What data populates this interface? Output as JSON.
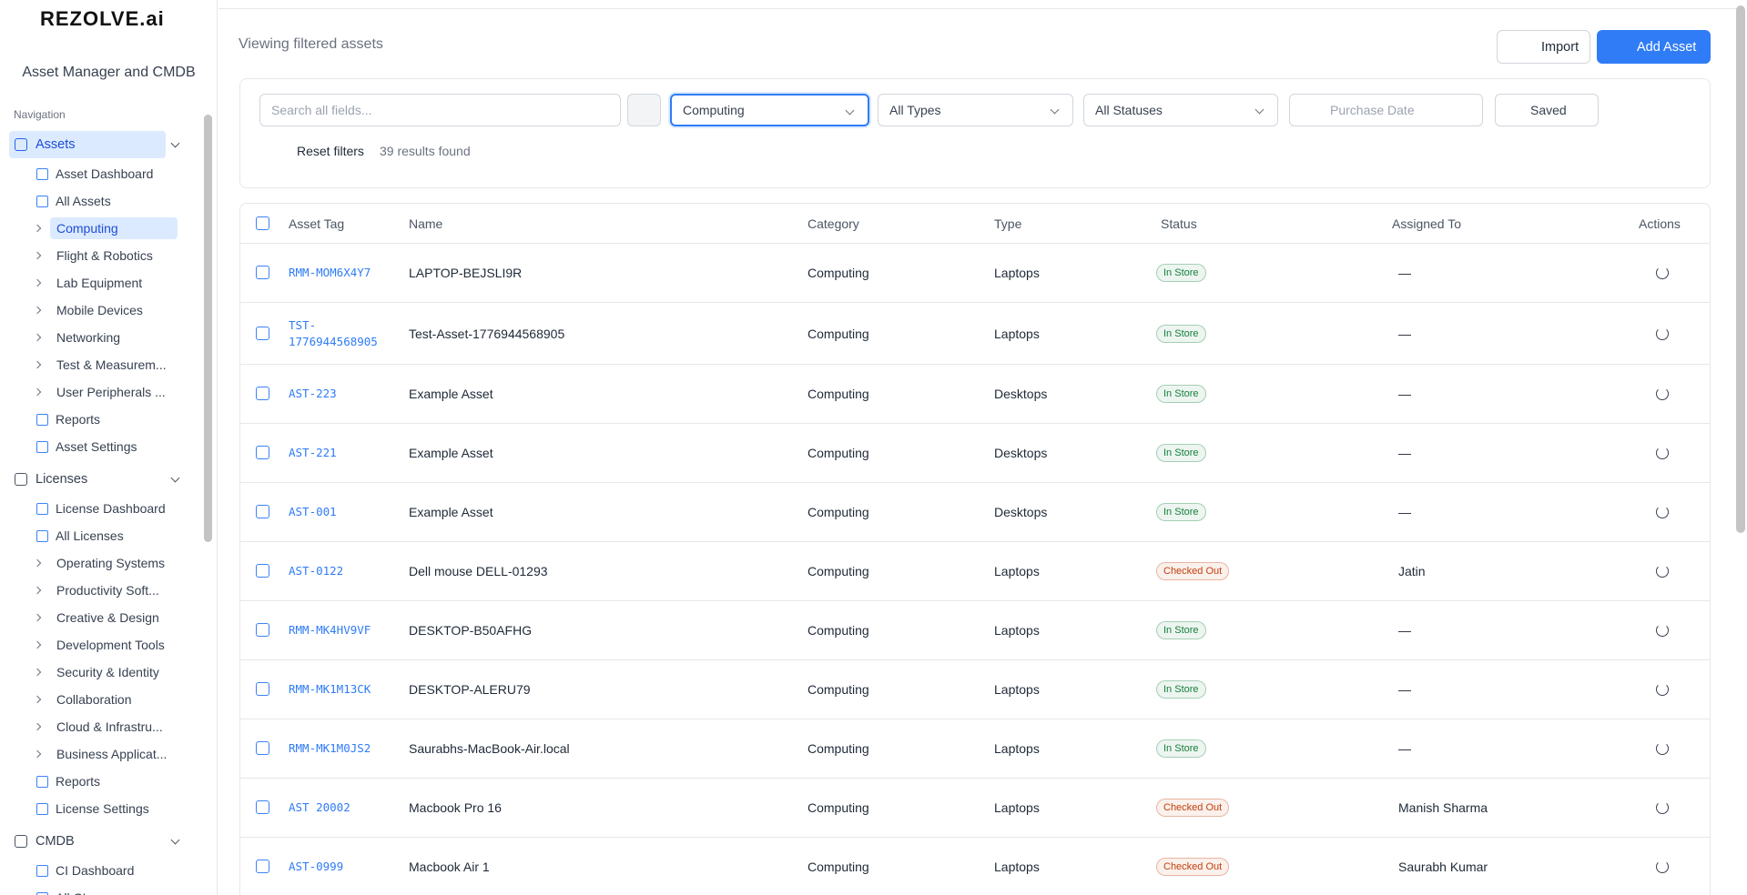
{
  "sidebar": {
    "logo": "REZOLVE.ai",
    "app_title": "Asset Manager and CMDB",
    "nav_label": "Navigation",
    "groups": [
      {
        "label": "Assets",
        "pages": [
          "Asset Dashboard",
          "All Assets"
        ],
        "categories": [
          "Computing",
          "Flight & Robotics",
          "Lab Equipment",
          "Mobile Devices",
          "Networking",
          "Test & Measurem...",
          "User Peripherals ..."
        ],
        "footer_pages": [
          "Reports",
          "Asset Settings"
        ]
      },
      {
        "label": "Licenses",
        "pages": [
          "License Dashboard",
          "All Licenses"
        ],
        "categories": [
          "Operating Systems",
          "Productivity Soft...",
          "Creative & Design",
          "Development Tools",
          "Security & Identity",
          "Collaboration",
          "Cloud & Infrastru...",
          "Business Applicat..."
        ],
        "footer_pages": [
          "Reports",
          "License Settings"
        ]
      },
      {
        "label": "CMDB",
        "pages": [
          "CI Dashboard",
          "All CIs"
        ],
        "categories": [],
        "footer_pages": []
      }
    ]
  },
  "header": {
    "title": "Viewing filtered assets",
    "import": "Import",
    "add": "Add Asset"
  },
  "filters": {
    "search": "Search all fields...",
    "category": "Computing",
    "type": "All Types",
    "status": "All Statuses",
    "date": "Purchase Date",
    "saved": "Saved",
    "reset": "Reset filters",
    "results": "39 results found"
  },
  "table": {
    "columns": [
      "Asset Tag",
      "Name",
      "Category",
      "Type",
      "Status",
      "Assigned To",
      "Actions"
    ],
    "status_colors": {
      "In Store": "#15803d",
      "Checked Out": "#c2410c"
    },
    "rows": [
      [
        "RMM-MOM6X4Y7",
        "LAPTOP-BEJSLI9R",
        "Computing",
        "Laptops",
        "In Store",
        "—"
      ],
      [
        "TST-1776944568905",
        "Test-Asset-1776944568905",
        "Computing",
        "Laptops",
        "In Store",
        "—"
      ],
      [
        "AST-223",
        "Example Asset",
        "Computing",
        "Desktops",
        "In Store",
        "—"
      ],
      [
        "AST-221",
        "Example Asset",
        "Computing",
        "Desktops",
        "In Store",
        "—"
      ],
      [
        "AST-001",
        "Example Asset",
        "Computing",
        "Desktops",
        "In Store",
        "—"
      ],
      [
        "AST-0122",
        "Dell mouse DELL-01293",
        "Computing",
        "Laptops",
        "Checked Out",
        "Jatin"
      ],
      [
        "RMM-MK4HV9VF",
        "DESKTOP-B50AFHG",
        "Computing",
        "Laptops",
        "In Store",
        "—"
      ],
      [
        "RMM-MK1M13CK",
        "DESKTOP-ALERU79",
        "Computing",
        "Laptops",
        "In Store",
        "—"
      ],
      [
        "RMM-MK1M0JS2",
        "Saurabhs-MacBook-Air.local",
        "Computing",
        "Laptops",
        "In Store",
        "—"
      ],
      [
        "AST 20002",
        "Macbook Pro 16",
        "Computing",
        "Laptops",
        "Checked Out",
        "Manish Sharma"
      ],
      [
        "AST-0999",
        "Macbook Air 1",
        "Computing",
        "Laptops",
        "Checked Out",
        "Saurabh Kumar"
      ]
    ]
  }
}
